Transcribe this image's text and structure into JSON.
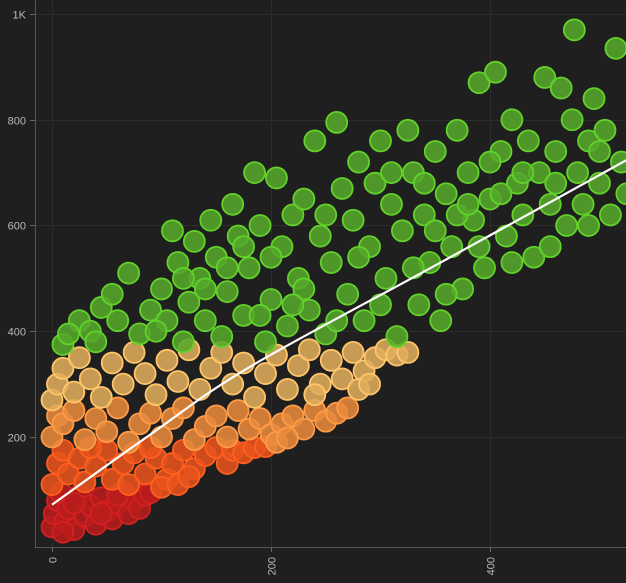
{
  "chart_data": {
    "type": "scatter",
    "title": "",
    "xlabel": "",
    "ylabel": "",
    "xlim": [
      -15,
      525
    ],
    "ylim": [
      0,
      1000
    ],
    "grid": true,
    "x_ticks": [
      {
        "value": 0,
        "label": "0"
      },
      {
        "value": 200,
        "label": "200"
      },
      {
        "value": 400,
        "label": "400"
      }
    ],
    "y_ticks": [
      {
        "value": 200,
        "label": "200"
      },
      {
        "value": 400,
        "label": "400"
      },
      {
        "value": 600,
        "label": "600"
      },
      {
        "value": 800,
        "label": "800"
      },
      {
        "value": 1000,
        "label": "1K"
      }
    ],
    "color_bands": [
      {
        "max": 100,
        "fill": "#b81c1c",
        "stroke": "#d42020"
      },
      {
        "max": 185,
        "fill": "#e8541c",
        "stroke": "#ff5e1f"
      },
      {
        "max": 260,
        "fill": "#e88a3e",
        "stroke": "#ff9a45"
      },
      {
        "max": 370,
        "fill": "#e0ad5c",
        "stroke": "#ffc56a"
      },
      {
        "max": 10000,
        "fill": "#55a82a",
        "stroke": "#62d22b"
      }
    ],
    "trend_line": {
      "color": "#ffffff",
      "points": [
        [
          0,
          72
        ],
        [
          90,
          205
        ],
        [
          181,
          333
        ],
        [
          354,
          529
        ],
        [
          525,
          724
        ]
      ]
    },
    "points": [
      [
        0,
        30
      ],
      [
        2,
        55
      ],
      [
        5,
        80
      ],
      [
        8,
        95
      ],
      [
        12,
        40
      ],
      [
        15,
        65
      ],
      [
        20,
        25
      ],
      [
        25,
        90
      ],
      [
        30,
        50
      ],
      [
        35,
        70
      ],
      [
        40,
        35
      ],
      [
        45,
        85
      ],
      [
        50,
        60
      ],
      [
        55,
        45
      ],
      [
        60,
        75
      ],
      [
        65,
        95
      ],
      [
        70,
        55
      ],
      [
        75,
        80
      ],
      [
        80,
        65
      ],
      [
        85,
        90
      ],
      [
        90,
        95
      ],
      [
        20,
        75
      ],
      [
        10,
        20
      ],
      [
        45,
        55
      ],
      [
        60,
        90
      ],
      [
        0,
        110
      ],
      [
        5,
        150
      ],
      [
        10,
        175
      ],
      [
        15,
        130
      ],
      [
        25,
        160
      ],
      [
        30,
        115
      ],
      [
        40,
        145
      ],
      [
        50,
        175
      ],
      [
        55,
        120
      ],
      [
        65,
        150
      ],
      [
        75,
        170
      ],
      [
        85,
        130
      ],
      [
        95,
        160
      ],
      [
        105,
        120
      ],
      [
        110,
        150
      ],
      [
        120,
        175
      ],
      [
        130,
        140
      ],
      [
        140,
        165
      ],
      [
        150,
        180
      ],
      [
        160,
        150
      ],
      [
        165,
        175
      ],
      [
        175,
        170
      ],
      [
        185,
        180
      ],
      [
        195,
        182
      ],
      [
        100,
        105
      ],
      [
        115,
        110
      ],
      [
        125,
        125
      ],
      [
        35,
        180
      ],
      [
        70,
        110
      ],
      [
        90,
        180
      ],
      [
        0,
        200
      ],
      [
        5,
        240
      ],
      [
        10,
        225
      ],
      [
        20,
        250
      ],
      [
        30,
        195
      ],
      [
        40,
        235
      ],
      [
        50,
        210
      ],
      [
        60,
        255
      ],
      [
        70,
        190
      ],
      [
        80,
        225
      ],
      [
        90,
        245
      ],
      [
        100,
        200
      ],
      [
        110,
        235
      ],
      [
        120,
        255
      ],
      [
        130,
        195
      ],
      [
        140,
        220
      ],
      [
        150,
        240
      ],
      [
        160,
        200
      ],
      [
        170,
        250
      ],
      [
        180,
        215
      ],
      [
        190,
        235
      ],
      [
        200,
        205
      ],
      [
        210,
        225
      ],
      [
        220,
        240
      ],
      [
        230,
        215
      ],
      [
        240,
        250
      ],
      [
        250,
        230
      ],
      [
        260,
        245
      ],
      [
        270,
        255
      ],
      [
        205,
        190
      ],
      [
        215,
        198
      ],
      [
        0,
        270
      ],
      [
        5,
        300
      ],
      [
        10,
        330
      ],
      [
        20,
        285
      ],
      [
        25,
        350
      ],
      [
        35,
        310
      ],
      [
        45,
        275
      ],
      [
        55,
        340
      ],
      [
        65,
        300
      ],
      [
        75,
        360
      ],
      [
        85,
        320
      ],
      [
        95,
        280
      ],
      [
        105,
        345
      ],
      [
        115,
        305
      ],
      [
        125,
        365
      ],
      [
        135,
        290
      ],
      [
        145,
        330
      ],
      [
        155,
        360
      ],
      [
        165,
        300
      ],
      [
        175,
        340
      ],
      [
        185,
        275
      ],
      [
        195,
        320
      ],
      [
        205,
        355
      ],
      [
        215,
        290
      ],
      [
        225,
        335
      ],
      [
        235,
        365
      ],
      [
        245,
        300
      ],
      [
        255,
        345
      ],
      [
        265,
        310
      ],
      [
        275,
        360
      ],
      [
        285,
        325
      ],
      [
        295,
        350
      ],
      [
        305,
        365
      ],
      [
        315,
        355
      ],
      [
        325,
        360
      ],
      [
        280,
        290
      ],
      [
        290,
        300
      ],
      [
        240,
        280
      ],
      [
        10,
        375
      ],
      [
        25,
        420
      ],
      [
        35,
        400
      ],
      [
        45,
        445
      ],
      [
        55,
        470
      ],
      [
        40,
        380
      ],
      [
        70,
        510
      ],
      [
        80,
        395
      ],
      [
        90,
        440
      ],
      [
        100,
        480
      ],
      [
        105,
        420
      ],
      [
        110,
        590
      ],
      [
        115,
        530
      ],
      [
        120,
        380
      ],
      [
        125,
        455
      ],
      [
        130,
        570
      ],
      [
        135,
        500
      ],
      [
        140,
        420
      ],
      [
        145,
        610
      ],
      [
        150,
        540
      ],
      [
        155,
        390
      ],
      [
        160,
        475
      ],
      [
        165,
        640
      ],
      [
        170,
        580
      ],
      [
        175,
        430
      ],
      [
        180,
        520
      ],
      [
        185,
        700
      ],
      [
        190,
        600
      ],
      [
        195,
        380
      ],
      [
        200,
        460
      ],
      [
        205,
        690
      ],
      [
        210,
        560
      ],
      [
        215,
        410
      ],
      [
        220,
        620
      ],
      [
        225,
        500
      ],
      [
        230,
        650
      ],
      [
        235,
        440
      ],
      [
        240,
        760
      ],
      [
        245,
        580
      ],
      [
        250,
        395
      ],
      [
        255,
        530
      ],
      [
        260,
        795
      ],
      [
        265,
        670
      ],
      [
        270,
        470
      ],
      [
        275,
        610
      ],
      [
        280,
        720
      ],
      [
        285,
        420
      ],
      [
        290,
        560
      ],
      [
        295,
        680
      ],
      [
        300,
        760
      ],
      [
        305,
        500
      ],
      [
        310,
        640
      ],
      [
        315,
        390
      ],
      [
        320,
        590
      ],
      [
        325,
        780
      ],
      [
        330,
        700
      ],
      [
        335,
        450
      ],
      [
        340,
        620
      ],
      [
        345,
        530
      ],
      [
        350,
        740
      ],
      [
        355,
        420
      ],
      [
        360,
        660
      ],
      [
        365,
        560
      ],
      [
        370,
        780
      ],
      [
        375,
        480
      ],
      [
        380,
        700
      ],
      [
        385,
        610
      ],
      [
        390,
        870
      ],
      [
        395,
        520
      ],
      [
        400,
        650
      ],
      [
        405,
        890
      ],
      [
        410,
        740
      ],
      [
        415,
        580
      ],
      [
        420,
        800
      ],
      [
        425,
        680
      ],
      [
        430,
        620
      ],
      [
        435,
        760
      ],
      [
        440,
        540
      ],
      [
        445,
        700
      ],
      [
        450,
        880
      ],
      [
        455,
        640
      ],
      [
        460,
        740
      ],
      [
        465,
        860
      ],
      [
        470,
        600
      ],
      [
        475,
        800
      ],
      [
        477,
        970
      ],
      [
        480,
        700
      ],
      [
        485,
        640
      ],
      [
        490,
        760
      ],
      [
        495,
        840
      ],
      [
        500,
        680
      ],
      [
        505,
        780
      ],
      [
        510,
        620
      ],
      [
        515,
        935
      ],
      [
        520,
        720
      ],
      [
        525,
        660
      ],
      [
        15,
        395
      ],
      [
        60,
        420
      ],
      [
        95,
        400
      ],
      [
        140,
        480
      ],
      [
        175,
        560
      ],
      [
        200,
        540
      ],
      [
        230,
        480
      ],
      [
        260,
        420
      ],
      [
        300,
        450
      ],
      [
        330,
        520
      ],
      [
        360,
        470
      ],
      [
        390,
        560
      ],
      [
        420,
        530
      ],
      [
        455,
        560
      ],
      [
        490,
        600
      ],
      [
        250,
        620
      ],
      [
        280,
        540
      ],
      [
        310,
        700
      ],
      [
        340,
        680
      ],
      [
        370,
        620
      ],
      [
        400,
        720
      ],
      [
        430,
        700
      ],
      [
        460,
        680
      ],
      [
        500,
        740
      ],
      [
        220,
        450
      ],
      [
        160,
        520
      ],
      [
        120,
        500
      ],
      [
        190,
        430
      ],
      [
        350,
        590
      ],
      [
        380,
        640
      ],
      [
        410,
        660
      ]
    ]
  }
}
